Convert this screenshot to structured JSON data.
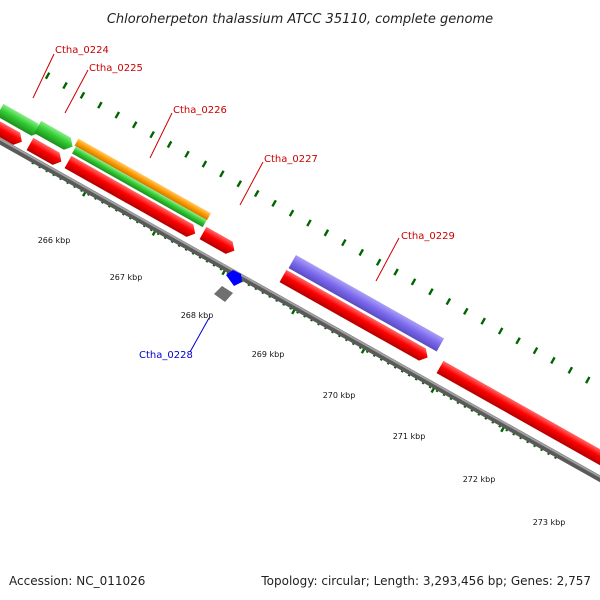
{
  "title": "Chloroherpeton thalassium ATCC 35110, complete genome",
  "footer": {
    "accession": "Accession: NC_011026",
    "summary": "Topology: circular; Length: 3,293,456 bp; Genes: 2,757"
  },
  "colors": {
    "cds": "#ff0000",
    "gene": "#33cc33",
    "orange": "#ff9900",
    "purple": "#7b68ee",
    "blue": "#0000ff",
    "gray": "#707070",
    "backbone": "#808080",
    "ticks": "#006400",
    "label_red": "#cc0000",
    "label_blue": "#0000cc"
  },
  "kbp_labels": [
    "266 kbp",
    "267 kbp",
    "268 kbp",
    "269 kbp",
    "270 kbp",
    "271 kbp",
    "272 kbp",
    "273 kbp"
  ],
  "gene_labels": [
    "Ctha_0224",
    "Ctha_0225",
    "Ctha_0226",
    "Ctha_0227",
    "Ctha_0229",
    "Ctha_0228"
  ]
}
